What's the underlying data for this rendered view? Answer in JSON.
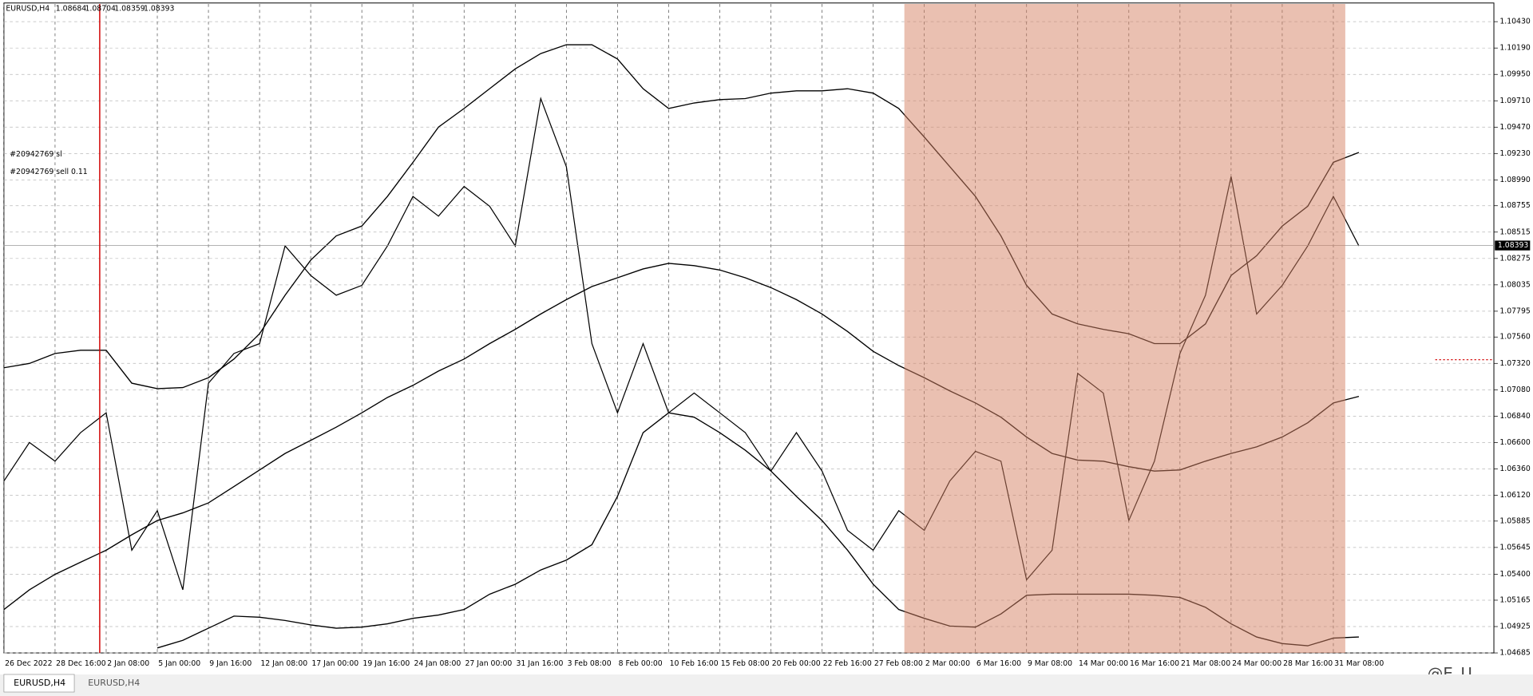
{
  "header": {
    "symbol": "EURUSD,H4",
    "open": 1.08684,
    "high": 1.08704,
    "low": 1.08359,
    "close": 1.08393
  },
  "annotations": [
    "#20942769 sl",
    "#20942769 sell 0.11"
  ],
  "tabs": [
    "EURUSD,H4",
    "EURUSD,H4"
  ],
  "watermark": "@E_U",
  "chart_data": {
    "type": "line",
    "categories": [
      "26 Dec 2022",
      null,
      "28 Dec 16:00",
      null,
      "2 Jan 08:00",
      null,
      "5 Jan 00:00",
      null,
      "9 Jan 16:00",
      null,
      "12 Jan 08:00",
      null,
      "17 Jan 00:00",
      null,
      "19 Jan 16:00",
      null,
      "24 Jan 08:00",
      null,
      "27 Jan 00:00",
      null,
      "31 Jan 16:00",
      null,
      "3 Feb 08:00",
      null,
      "8 Feb 00:00",
      null,
      "10 Feb 16:00",
      null,
      "15 Feb 08:00",
      null,
      "20 Feb 00:00",
      null,
      "22 Feb 16:00",
      null,
      "27 Feb 08:00",
      null,
      "2 Mar 00:00",
      null,
      "6 Mar 16:00",
      null,
      "9 Mar 08:00",
      null,
      "14 Mar 00:00",
      null,
      "16 Mar 16:00",
      null,
      "21 Mar 08:00",
      null,
      "24 Mar 00:00",
      null,
      "28 Mar 16:00",
      null,
      "31 Mar 08:00",
      null
    ],
    "series": [
      {
        "color": "#000000",
        "values": [
          1.0625,
          1.066,
          1.0643,
          1.0669,
          1.0687,
          1.0562,
          1.0598,
          1.0526,
          1.0714,
          1.0741,
          1.075,
          1.0839,
          1.0812,
          1.0794,
          1.0803,
          1.0839,
          1.0884,
          1.0866,
          1.0893,
          1.0875,
          1.0839,
          1.0973,
          1.0911,
          1.075,
          1.0687,
          1.075,
          1.0687,
          1.0705,
          1.0687,
          1.0669,
          1.0634,
          1.0669,
          1.0634,
          1.058,
          1.0562,
          1.0598,
          1.058,
          1.0625,
          1.0652,
          1.0643,
          1.0535,
          1.0562,
          1.0723,
          1.0705,
          1.0589,
          1.0643,
          1.0741,
          1.0794,
          1.0902,
          1.0777,
          1.0803,
          1.0839,
          1.0884,
          1.0839
        ]
      },
      {
        "color": "#000000",
        "values": [
          1.0728,
          1.0732,
          1.0741,
          1.0744,
          1.0744,
          1.0714,
          1.0709,
          1.071,
          1.0719,
          1.0736,
          1.0759,
          1.0794,
          1.0826,
          1.0848,
          1.0857,
          1.0884,
          1.0915,
          1.0947,
          1.0964,
          1.0982,
          1.1,
          1.1014,
          1.1022,
          1.1022,
          1.1009,
          1.0982,
          1.0964,
          1.0969,
          1.0972,
          1.0973,
          1.0978,
          1.098,
          1.098,
          1.0982,
          1.0978,
          1.0964,
          1.0938,
          1.0911,
          1.0884,
          1.0848,
          1.0803,
          1.0777,
          1.0768,
          1.0763,
          1.0759,
          1.075,
          1.075,
          1.0768,
          1.0812,
          1.083,
          1.0857,
          1.0875,
          1.0915,
          1.0924
        ]
      },
      {
        "color": "#000000",
        "values": [
          1.0508,
          1.0526,
          1.054,
          1.0551,
          1.0562,
          1.0576,
          1.0589,
          1.0596,
          1.0605,
          1.062,
          1.0635,
          1.065,
          1.0662,
          1.0674,
          1.0687,
          1.0701,
          1.0712,
          1.0725,
          1.0736,
          1.075,
          1.0763,
          1.0777,
          1.079,
          1.0802,
          1.081,
          1.0818,
          1.0823,
          1.0821,
          1.0817,
          1.081,
          1.0801,
          1.079,
          1.0777,
          1.0761,
          1.0743,
          1.073,
          1.0719,
          1.0707,
          1.0696,
          1.0683,
          1.0665,
          1.065,
          1.0644,
          1.0643,
          1.0638,
          1.0634,
          1.0635,
          1.0643,
          1.065,
          1.0656,
          1.0665,
          1.0678,
          1.0696,
          1.0702
        ]
      },
      {
        "color": "#000000",
        "values": [
          null,
          null,
          null,
          null,
          null,
          null,
          1.0473,
          1.048,
          1.0491,
          1.0502,
          1.0501,
          1.0498,
          1.0494,
          1.0491,
          1.0492,
          1.0495,
          1.05,
          1.0503,
          1.0508,
          1.0522,
          1.0531,
          1.0544,
          1.0553,
          1.0567,
          1.0611,
          1.0669,
          1.0687,
          1.0683,
          1.0669,
          1.0653,
          1.0634,
          1.0611,
          1.0589,
          1.0562,
          1.0531,
          1.0508,
          1.05,
          1.0493,
          1.0492,
          1.0504,
          1.0521,
          1.0522,
          1.0522,
          1.0522,
          1.0522,
          1.0521,
          1.0519,
          1.051,
          1.0495,
          1.0483,
          1.0477,
          1.0475,
          1.0482,
          1.0483
        ]
      }
    ],
    "current_price": 1.08393,
    "ylim": [
      1.04685,
      1.10591
    ],
    "yticks": [
      {
        "value": 1.1043,
        "label": "1.10430"
      },
      {
        "value": 1.1019,
        "label": "1.10190"
      },
      {
        "value": 1.0995,
        "label": "1.09950"
      },
      {
        "value": 1.0971,
        "label": "1.09710"
      },
      {
        "value": 1.0947,
        "label": "1.09470"
      },
      {
        "value": 1.0923,
        "label": "1.09230"
      },
      {
        "value": 1.0899,
        "label": "1.08990"
      },
      {
        "value": 1.08755,
        "label": "1.08755"
      },
      {
        "value": 1.08515,
        "label": "1.08515"
      },
      {
        "value": 1.08275,
        "label": "1.08275"
      },
      {
        "value": 1.08035,
        "label": "1.08035"
      },
      {
        "value": 1.07795,
        "label": "1.07795"
      },
      {
        "value": 1.0756,
        "label": "1.07560"
      },
      {
        "value": 1.0732,
        "label": "1.07320"
      },
      {
        "value": 1.0708,
        "label": "1.07080"
      },
      {
        "value": 1.0684,
        "label": "1.06840"
      },
      {
        "value": 1.066,
        "label": "1.06600"
      },
      {
        "value": 1.0636,
        "label": "1.06360"
      },
      {
        "value": 1.0612,
        "label": "1.06120"
      },
      {
        "value": 1.05885,
        "label": "1.05885"
      },
      {
        "value": 1.05645,
        "label": "1.05645"
      },
      {
        "value": 1.054,
        "label": "1.05400"
      },
      {
        "value": 1.05165,
        "label": "1.05165"
      },
      {
        "value": 1.04925,
        "label": "1.04925"
      },
      {
        "value": 1.04685,
        "label": "1.04685"
      }
    ],
    "grid": true
  }
}
